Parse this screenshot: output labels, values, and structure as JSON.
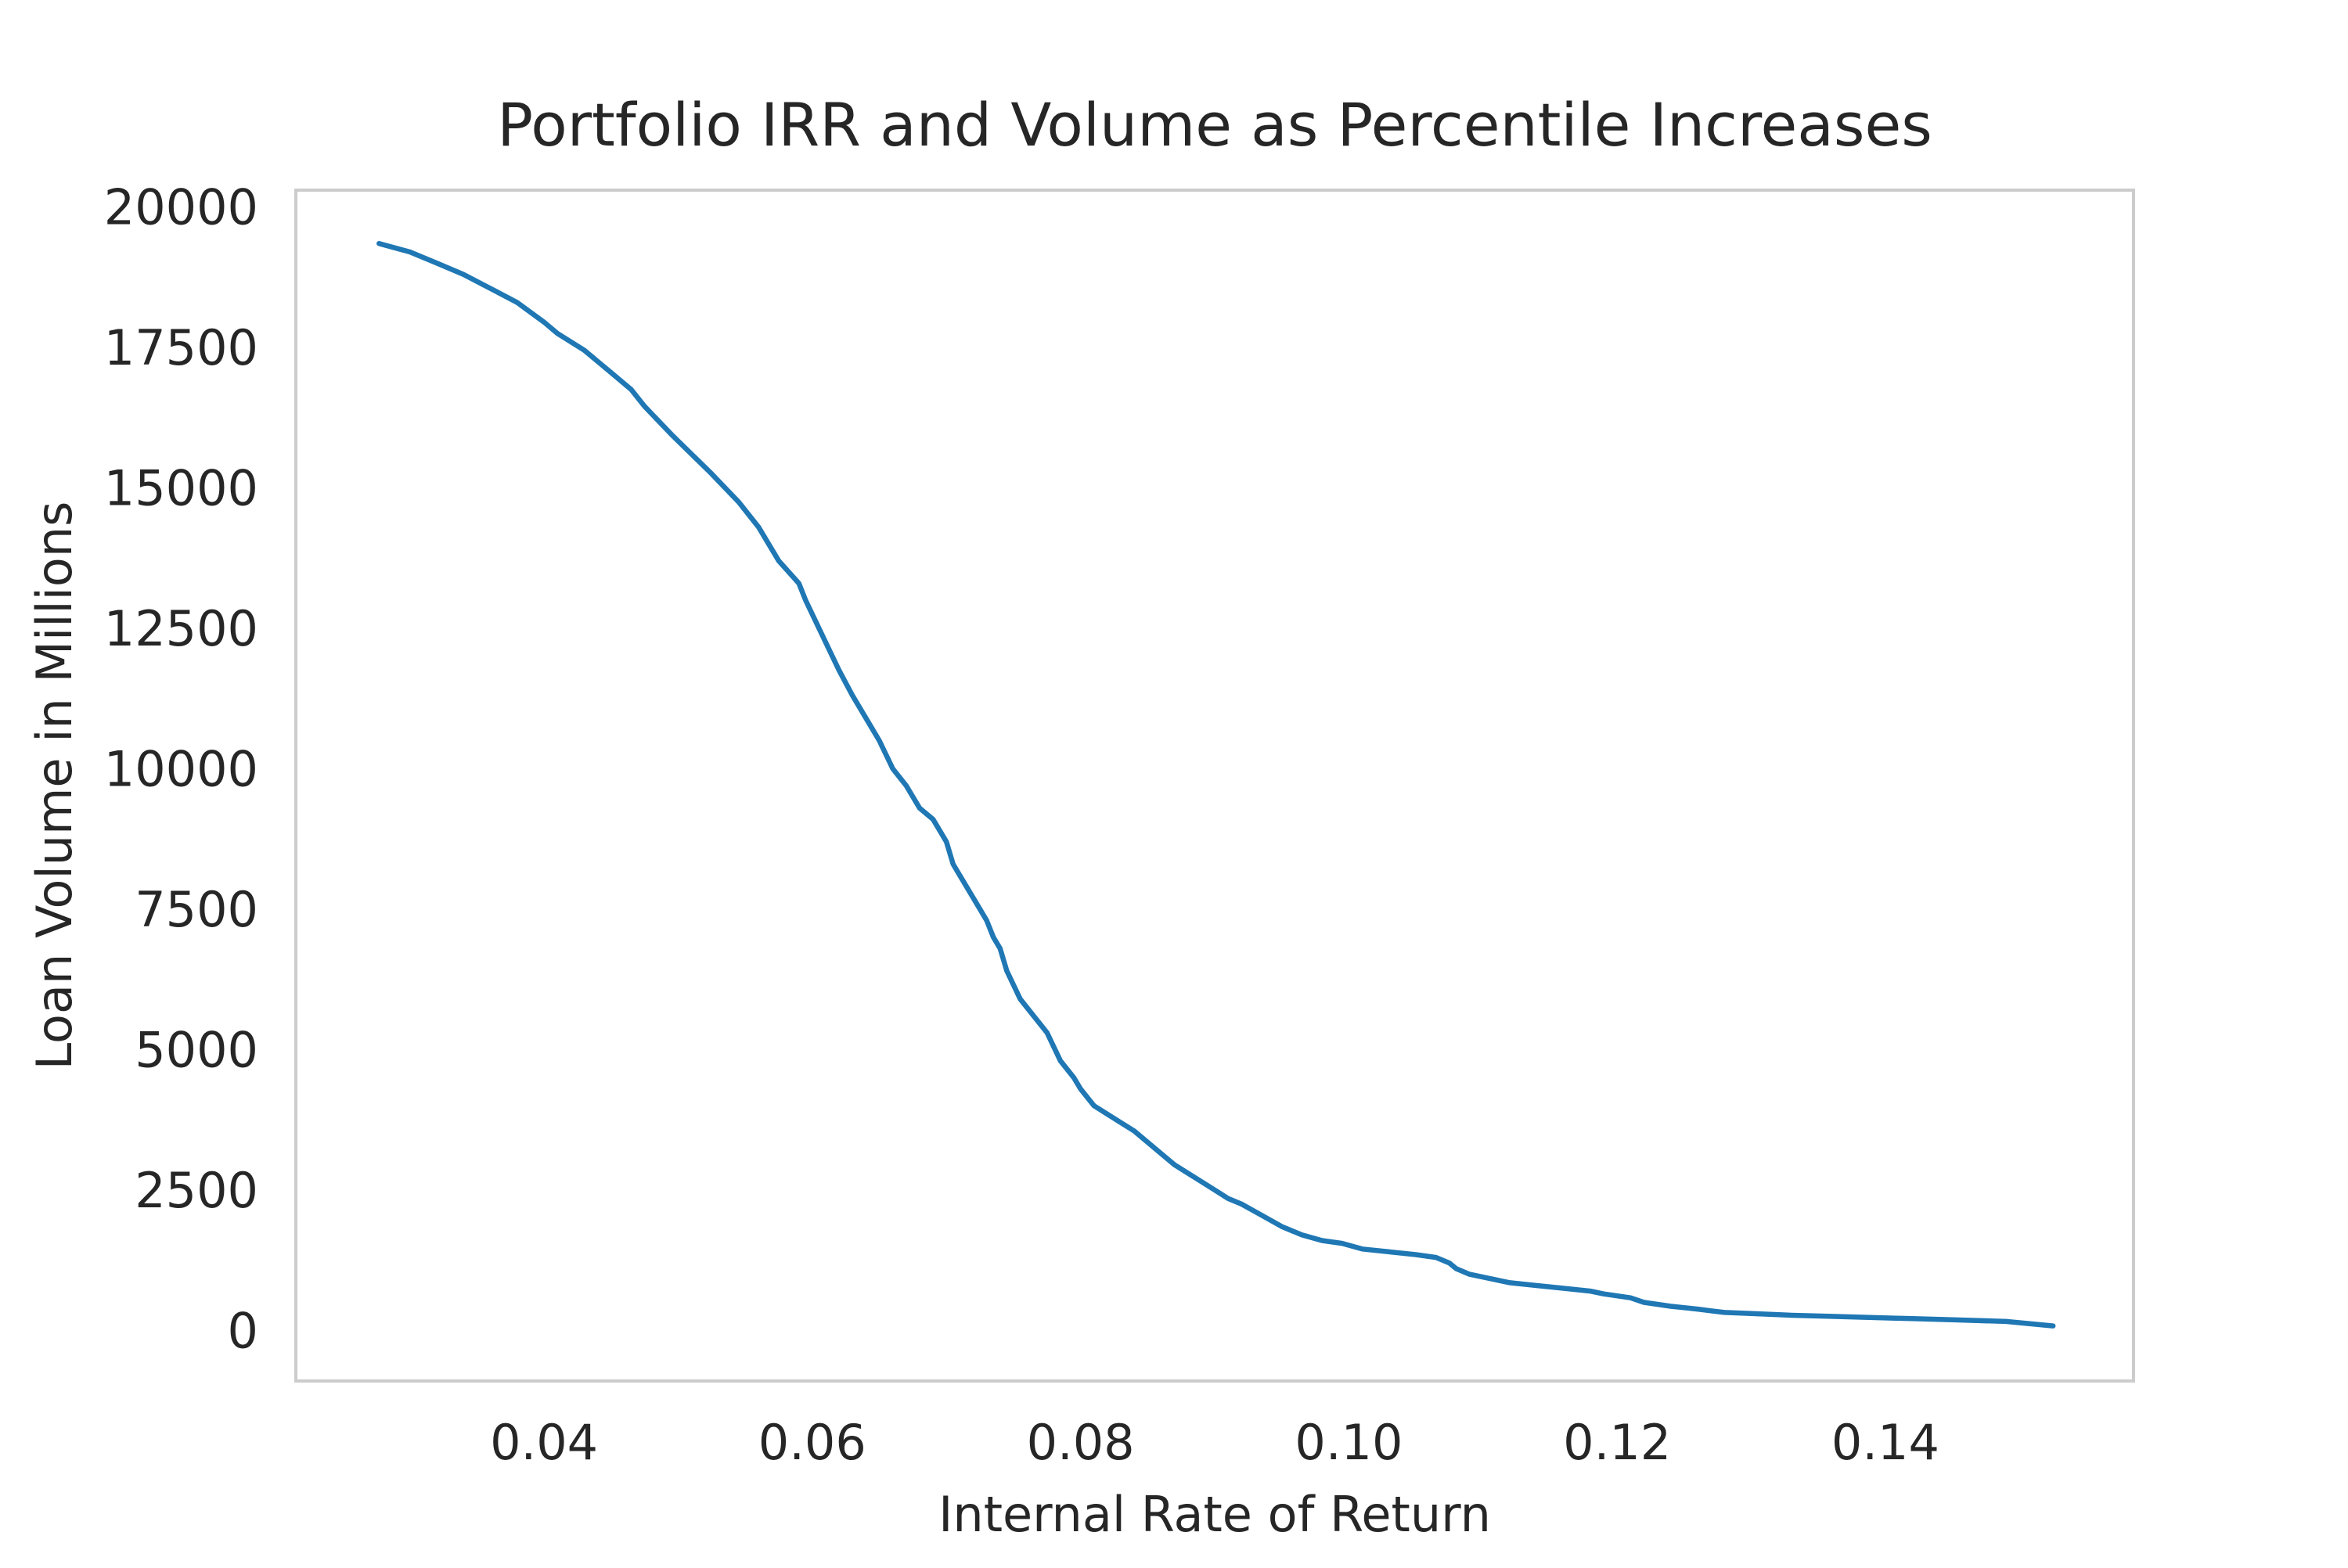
{
  "chart_data": {
    "type": "line",
    "title": "Portfolio IRR and Volume as Percentile Increases",
    "xlabel": "Internal Rate of Return",
    "ylabel": "Loan Volume in Millions",
    "xlim": [
      0.0215,
      0.1585
    ],
    "ylim": [
      -900,
      20300
    ],
    "xticks": [
      0.04,
      0.06,
      0.08,
      0.1,
      0.12,
      0.14
    ],
    "xtick_labels": [
      "0.04",
      "0.06",
      "0.08",
      "0.10",
      "0.12",
      "0.14"
    ],
    "yticks": [
      0,
      2500,
      5000,
      7500,
      10000,
      12500,
      15000,
      17500,
      20000
    ],
    "ytick_labels": [
      "0",
      "2500",
      "5000",
      "7500",
      "10000",
      "12500",
      "15000",
      "17500",
      "20000"
    ],
    "grid": false,
    "colors": {
      "line": "#1f77b4",
      "frame": "#cccccc",
      "text": "#262626"
    },
    "series": [
      {
        "x": [
          0.0277,
          0.03,
          0.032,
          0.034,
          0.036,
          0.038,
          0.04,
          0.041,
          0.043,
          0.045,
          0.0465,
          0.0475,
          0.0485,
          0.0495,
          0.051,
          0.0525,
          0.0535,
          0.0545,
          0.056,
          0.0575,
          0.059,
          0.0595,
          0.0605,
          0.0615,
          0.062,
          0.063,
          0.064,
          0.065,
          0.066,
          0.067,
          0.068,
          0.069,
          0.07,
          0.0705,
          0.071,
          0.0715,
          0.072,
          0.073,
          0.0735,
          0.074,
          0.0745,
          0.0755,
          0.0765,
          0.0775,
          0.0785,
          0.0795,
          0.08,
          0.081,
          0.082,
          0.083,
          0.084,
          0.085,
          0.086,
          0.087,
          0.088,
          0.089,
          0.09,
          0.091,
          0.092,
          0.0935,
          0.095,
          0.0965,
          0.098,
          0.0995,
          0.101,
          0.103,
          0.105,
          0.1065,
          0.1075,
          0.108,
          0.109,
          0.11,
          0.111,
          0.112,
          0.114,
          0.116,
          0.118,
          0.119,
          0.121,
          0.122,
          0.124,
          0.126,
          0.127,
          0.128,
          0.13,
          0.133,
          0.136,
          0.139,
          0.142,
          0.145,
          0.149,
          0.1525
        ],
        "y": [
          19350,
          19200,
          19000,
          18800,
          18550,
          18300,
          17950,
          17750,
          17450,
          17050,
          16750,
          16450,
          16200,
          15950,
          15600,
          15250,
          15000,
          14750,
          14300,
          13700,
          13300,
          13000,
          12500,
          12000,
          11750,
          11300,
          10900,
          10500,
          10000,
          9700,
          9300,
          9100,
          8700,
          8300,
          8100,
          7900,
          7700,
          7300,
          7000,
          6800,
          6400,
          5900,
          5600,
          5300,
          4800,
          4500,
          4300,
          4000,
          3850,
          3700,
          3550,
          3350,
          3150,
          2950,
          2800,
          2650,
          2500,
          2350,
          2250,
          2050,
          1850,
          1700,
          1600,
          1550,
          1450,
          1400,
          1350,
          1300,
          1200,
          1100,
          1000,
          950,
          900,
          850,
          800,
          750,
          700,
          650,
          580,
          500,
          430,
          380,
          350,
          320,
          300,
          270,
          250,
          230,
          210,
          190,
          160,
          80
        ]
      }
    ]
  }
}
